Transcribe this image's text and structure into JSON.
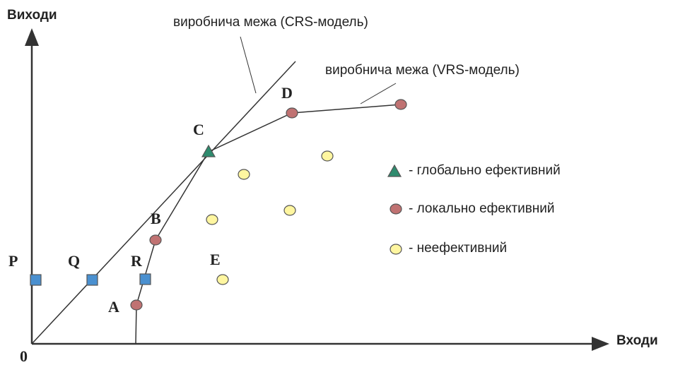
{
  "axes": {
    "y_label": "Виходи",
    "x_label": "Входи",
    "origin": "0"
  },
  "annotations": [
    "виробнича межа (CRS-модель)",
    "виробнича межа (VRS-модель)"
  ],
  "points": [
    "A",
    "B",
    "C",
    "D",
    "E",
    "P",
    "Q",
    "R"
  ],
  "legend": [
    "- глобально ефективний",
    "- локально ефективний",
    "- неефективний"
  ]
}
